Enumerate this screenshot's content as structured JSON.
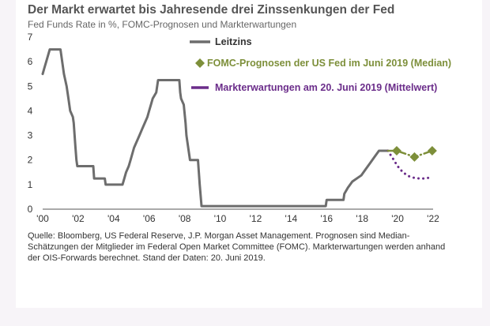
{
  "chart_data": {
    "type": "line",
    "title": "Der Markt erwartet bis Jahresende drei Zinssenkungen der Fed",
    "subtitle": "Fed Funds Rate in %, FOMC-Prognosen und Markterwartungen",
    "xlim": [
      2000,
      2022
    ],
    "ylim": [
      0,
      7
    ],
    "x_tick_labels": [
      "'00",
      "'02",
      "'04",
      "'06",
      "'08",
      "'10",
      "'12",
      "'14",
      "'16",
      "'18",
      "'20",
      "'22"
    ],
    "y_tick_labels": [
      "0",
      "1",
      "2",
      "3",
      "4",
      "5",
      "6",
      "7"
    ],
    "legend_position": "top-right",
    "series": [
      {
        "name": "Leitzins",
        "style": "step-line",
        "color": "#6d6d6d",
        "points": [
          [
            2000.0,
            5.5
          ],
          [
            2000.1,
            5.75
          ],
          [
            2000.2,
            6.0
          ],
          [
            2000.4,
            6.5
          ],
          [
            2001.0,
            6.5
          ],
          [
            2001.1,
            6.0
          ],
          [
            2001.2,
            5.5
          ],
          [
            2001.35,
            5.0
          ],
          [
            2001.45,
            4.5
          ],
          [
            2001.55,
            4.0
          ],
          [
            2001.7,
            3.75
          ],
          [
            2001.75,
            3.5
          ],
          [
            2001.8,
            3.0
          ],
          [
            2001.85,
            2.5
          ],
          [
            2001.9,
            2.0
          ],
          [
            2001.95,
            1.75
          ],
          [
            2002.85,
            1.75
          ],
          [
            2002.9,
            1.25
          ],
          [
            2003.5,
            1.25
          ],
          [
            2003.55,
            1.0
          ],
          [
            2004.5,
            1.0
          ],
          [
            2004.6,
            1.25
          ],
          [
            2004.7,
            1.5
          ],
          [
            2004.85,
            1.75
          ],
          [
            2004.95,
            2.0
          ],
          [
            2005.05,
            2.25
          ],
          [
            2005.15,
            2.5
          ],
          [
            2005.3,
            2.75
          ],
          [
            2005.45,
            3.0
          ],
          [
            2005.6,
            3.25
          ],
          [
            2005.75,
            3.5
          ],
          [
            2005.9,
            3.75
          ],
          [
            2006.0,
            4.0
          ],
          [
            2006.1,
            4.25
          ],
          [
            2006.2,
            4.5
          ],
          [
            2006.4,
            4.75
          ],
          [
            2006.5,
            5.25
          ],
          [
            2007.7,
            5.25
          ],
          [
            2007.75,
            4.75
          ],
          [
            2007.8,
            4.5
          ],
          [
            2007.95,
            4.25
          ],
          [
            2008.05,
            3.5
          ],
          [
            2008.1,
            3.0
          ],
          [
            2008.3,
            2.0
          ],
          [
            2008.75,
            2.0
          ],
          [
            2008.8,
            1.5
          ],
          [
            2008.85,
            1.0
          ],
          [
            2008.95,
            0.125
          ],
          [
            2015.95,
            0.125
          ],
          [
            2016.0,
            0.375
          ],
          [
            2016.95,
            0.375
          ],
          [
            2017.0,
            0.625
          ],
          [
            2017.2,
            0.875
          ],
          [
            2017.45,
            1.125
          ],
          [
            2017.95,
            1.375
          ],
          [
            2018.2,
            1.625
          ],
          [
            2018.45,
            1.875
          ],
          [
            2018.7,
            2.125
          ],
          [
            2018.95,
            2.375
          ],
          [
            2019.45,
            2.375
          ]
        ]
      },
      {
        "name": "FOMC-Prognosen der US Fed im Juni 2019 (Median)",
        "style": "dash-dot with diamond markers",
        "color": "#7d8f3a",
        "points": [
          [
            2019.45,
            2.375
          ],
          [
            2019.95,
            2.375
          ],
          [
            2020.95,
            2.125
          ],
          [
            2021.95,
            2.375
          ]
        ],
        "markers": [
          [
            2019.95,
            2.375
          ],
          [
            2020.95,
            2.125
          ],
          [
            2021.95,
            2.375
          ]
        ]
      },
      {
        "name": "Markterwartungen am 20. Juni 2019 (Mittelwert)",
        "style": "dotted",
        "color": "#6b2d8a",
        "points": [
          [
            2019.45,
            2.375
          ],
          [
            2019.7,
            2.1
          ],
          [
            2020.0,
            1.75
          ],
          [
            2020.3,
            1.5
          ],
          [
            2020.6,
            1.35
          ],
          [
            2020.9,
            1.28
          ],
          [
            2021.2,
            1.25
          ],
          [
            2021.5,
            1.25
          ],
          [
            2021.8,
            1.28
          ],
          [
            2021.95,
            1.32
          ]
        ]
      }
    ]
  },
  "source_note": "Quelle: Bloomberg, US Federal Reserve, J.P. Morgan Asset Management. Prognosen sind Median-Schätzungen der Mitglieder im Federal Open Market Committee (FOMC). Markterwartungen werden anhand der OIS-Forwards berechnet. Stand der Daten: 20. Juni 2019."
}
